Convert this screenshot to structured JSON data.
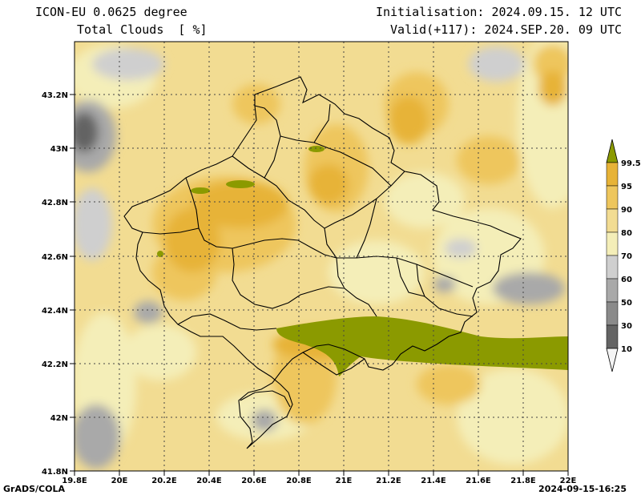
{
  "header": {
    "model": "ICON-EU 0.0625 degree",
    "variable": "Total Clouds  [ %]",
    "init": "Initialisation: 2024.09.15. 12 UTC",
    "valid": "Valid(+117): 2024.SEP.20. 09 UTC"
  },
  "footer": {
    "credit": "GrADS/COLA",
    "timestamp": "2024-09-15-16:25"
  },
  "map": {
    "x_ticks": [
      "19.8E",
      "20E",
      "20.2E",
      "20.4E",
      "20.6E",
      "20.8E",
      "21E",
      "21.2E",
      "21.4E",
      "21.6E",
      "21.8E",
      "22E"
    ],
    "y_ticks": [
      "43.2N",
      "43N",
      "42.8N",
      "42.6N",
      "42.4N",
      "42.2N",
      "42N",
      "41.8N"
    ],
    "grid": true,
    "background_color": "#f2dc92"
  },
  "legend": {
    "labels": [
      "99.5",
      "95",
      "90",
      "80",
      "70",
      "60",
      "50",
      "30",
      "10"
    ],
    "colors": [
      "#8b9a00",
      "#e7b337",
      "#eec65d",
      "#f2dc92",
      "#f4eeb8",
      "#cfcfcf",
      "#a9a9a9",
      "#8a8a8a",
      "#646464",
      "#f4f4f4"
    ],
    "color_meaning": [
      "99.5-100",
      "95-99.5",
      "90-95",
      "80-90",
      "70-80",
      "60-70",
      "50-60",
      "30-50",
      "10-30",
      "0-10"
    ]
  }
}
